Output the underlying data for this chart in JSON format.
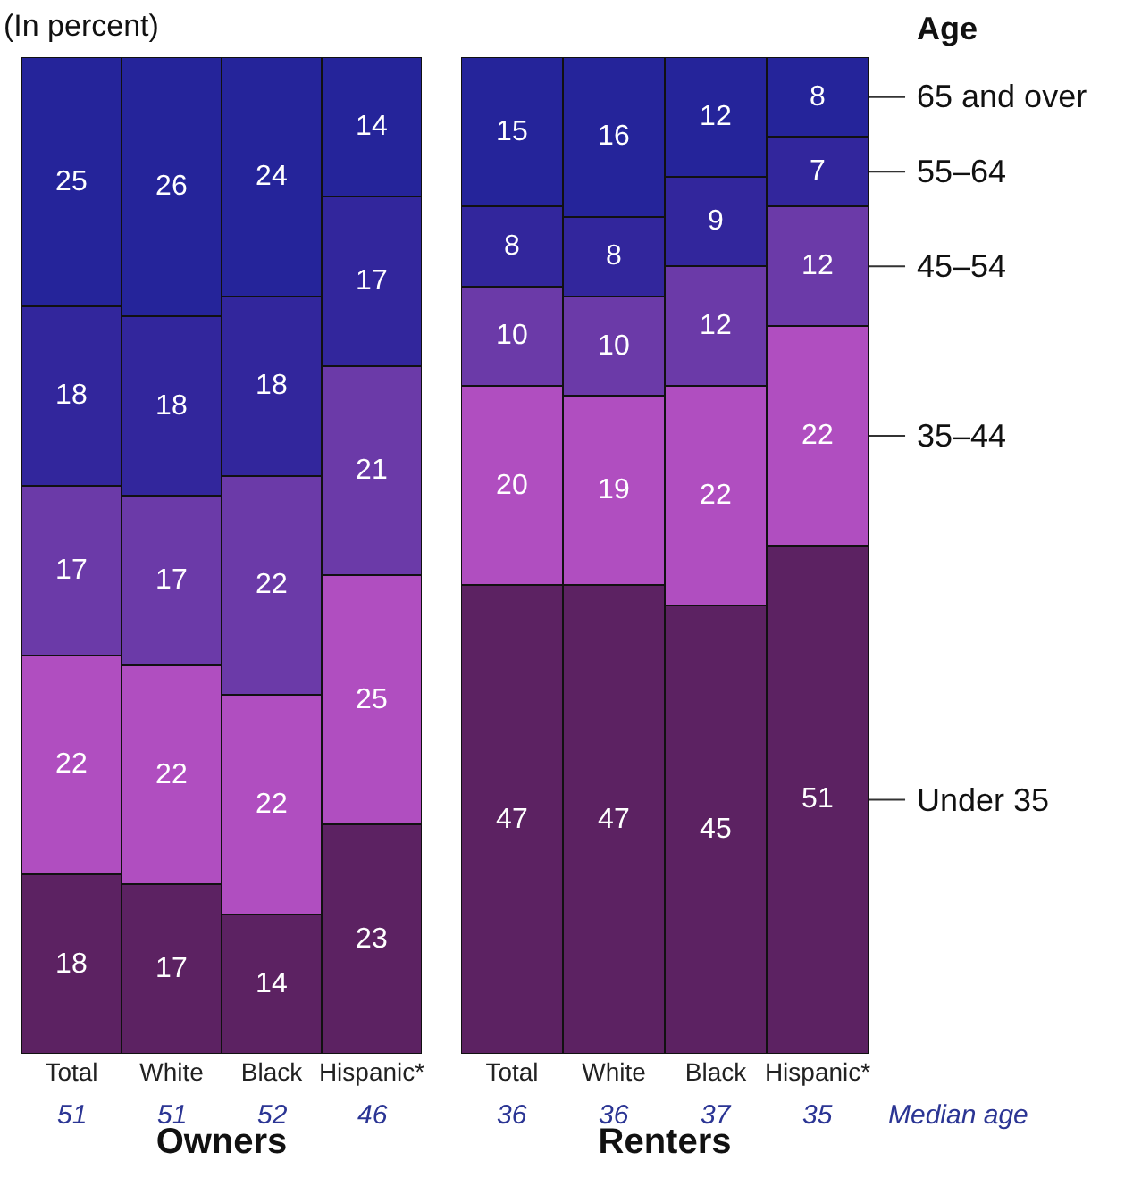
{
  "chart_data": [
    {
      "type": "bar",
      "stacked": true,
      "data_labels": true,
      "tick_labels": "x",
      "ylim": [
        0,
        100
      ],
      "ylabel": "(In percent)",
      "xlabel": "Owners",
      "categories": [
        "Total",
        "White",
        "Black",
        "Hispanic*"
      ],
      "series": [
        {
          "color": "#5c2262",
          "values": [
            18,
            17,
            14,
            23
          ]
        },
        {
          "color": "#b04ec0",
          "values": [
            22,
            22,
            22,
            25
          ]
        },
        {
          "color": "#6b3aa8",
          "values": [
            17,
            17,
            22,
            21
          ]
        },
        {
          "color": "#32269c",
          "values": [
            18,
            18,
            18,
            17
          ]
        },
        {
          "color": "#25249a",
          "values": [
            25,
            26,
            24,
            14
          ]
        }
      ],
      "annotations": [
        "51",
        "51",
        "52",
        "46"
      ]
    },
    {
      "type": "bar",
      "stacked": true,
      "data_labels": true,
      "tick_labels": "x",
      "ylim": [
        0,
        100
      ],
      "xlabel": "Renters",
      "legend": "right",
      "legend_title": "Age",
      "categories": [
        "Total",
        "White",
        "Black",
        "Hispanic*"
      ],
      "series": [
        {
          "name": "Under 35",
          "color": "#5c2262",
          "values": [
            47,
            47,
            45,
            51
          ]
        },
        {
          "name": "35–44",
          "color": "#b04ec0",
          "values": [
            20,
            19,
            22,
            22
          ]
        },
        {
          "name": "45–54",
          "color": "#6b3aa8",
          "values": [
            10,
            10,
            12,
            12
          ]
        },
        {
          "name": "55–64",
          "color": "#32269c",
          "values": [
            8,
            8,
            9,
            7
          ]
        },
        {
          "name": "65 and over",
          "color": "#25249a",
          "values": [
            15,
            16,
            12,
            8
          ]
        }
      ],
      "annotations": [
        "36",
        "36",
        "37",
        "35",
        "Median age"
      ]
    }
  ]
}
